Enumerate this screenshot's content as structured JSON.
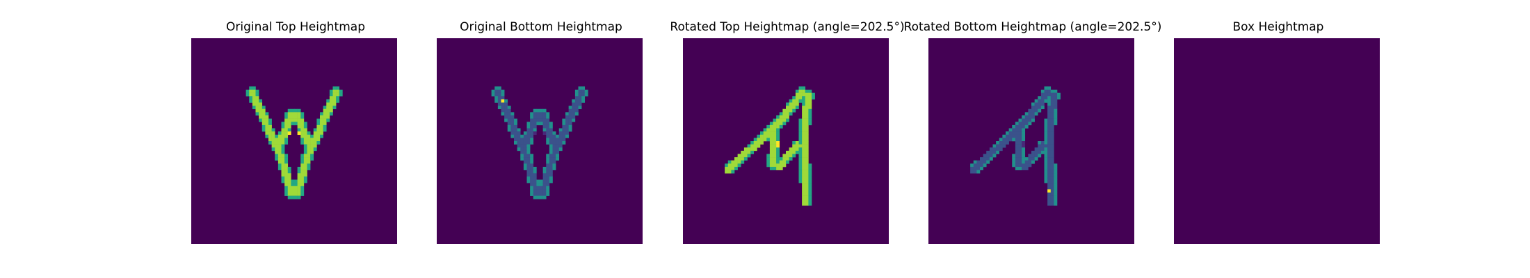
{
  "figure": {
    "panels": [
      {
        "title": "Original Top Heightmap"
      },
      {
        "title": "Original Bottom Heightmap"
      },
      {
        "title": "Rotated Top Heightmap (angle=202.5°)"
      },
      {
        "title": "Rotated Bottom Heightmap (angle=202.5°)"
      },
      {
        "title": "Box Heightmap"
      }
    ]
  },
  "chart_data": [
    {
      "type": "heatmap",
      "title": "Original Top Heightmap",
      "grid_size": 64,
      "colormap": "viridis",
      "background_color": "#440154",
      "axes_visible": false,
      "shape": "V-shaped object (two arms joined at bottom), upright",
      "value_range": "high (green-yellow), brightest at center junction",
      "colors": [
        "#440154",
        "#22a884",
        "#a0da39",
        "#fde725"
      ]
    },
    {
      "type": "heatmap",
      "title": "Original Bottom Heightmap",
      "grid_size": 64,
      "colormap": "viridis",
      "background_color": "#440154",
      "axes_visible": false,
      "shape": "V-shaped object (two arms joined at bottom), upright",
      "value_range": "low (blue), darker purple at center junction",
      "colors": [
        "#440154",
        "#3b528b",
        "#31688e",
        "#21918c",
        "#fde725"
      ]
    },
    {
      "type": "heatmap",
      "title": "Rotated Top Heightmap (angle=202.5°)",
      "grid_size": 64,
      "colormap": "viridis",
      "background_color": "#440154",
      "axes_visible": false,
      "rotation_angle": 202.5,
      "shape": "V-shaped object rotated, arms pointing right",
      "value_range": "high (green-yellow), brightest at center junction",
      "colors": [
        "#440154",
        "#22a884",
        "#a0da39",
        "#fde725"
      ]
    },
    {
      "type": "heatmap",
      "title": "Rotated Bottom Heightmap (angle=202.5°)",
      "grid_size": 64,
      "colormap": "viridis",
      "background_color": "#440154",
      "axes_visible": false,
      "rotation_angle": 202.5,
      "shape": "V-shaped object rotated, arms pointing right",
      "value_range": "low (blue), darker purple at center junction",
      "colors": [
        "#440154",
        "#3b528b",
        "#31688e",
        "#21918c",
        "#fde725"
      ]
    },
    {
      "type": "heatmap",
      "title": "Box Heightmap",
      "grid_size": 64,
      "colormap": "viridis",
      "background_color": "#440154",
      "axes_visible": false,
      "shape": "empty",
      "value_range": "uniform zero",
      "colors": [
        "#440154"
      ]
    }
  ]
}
